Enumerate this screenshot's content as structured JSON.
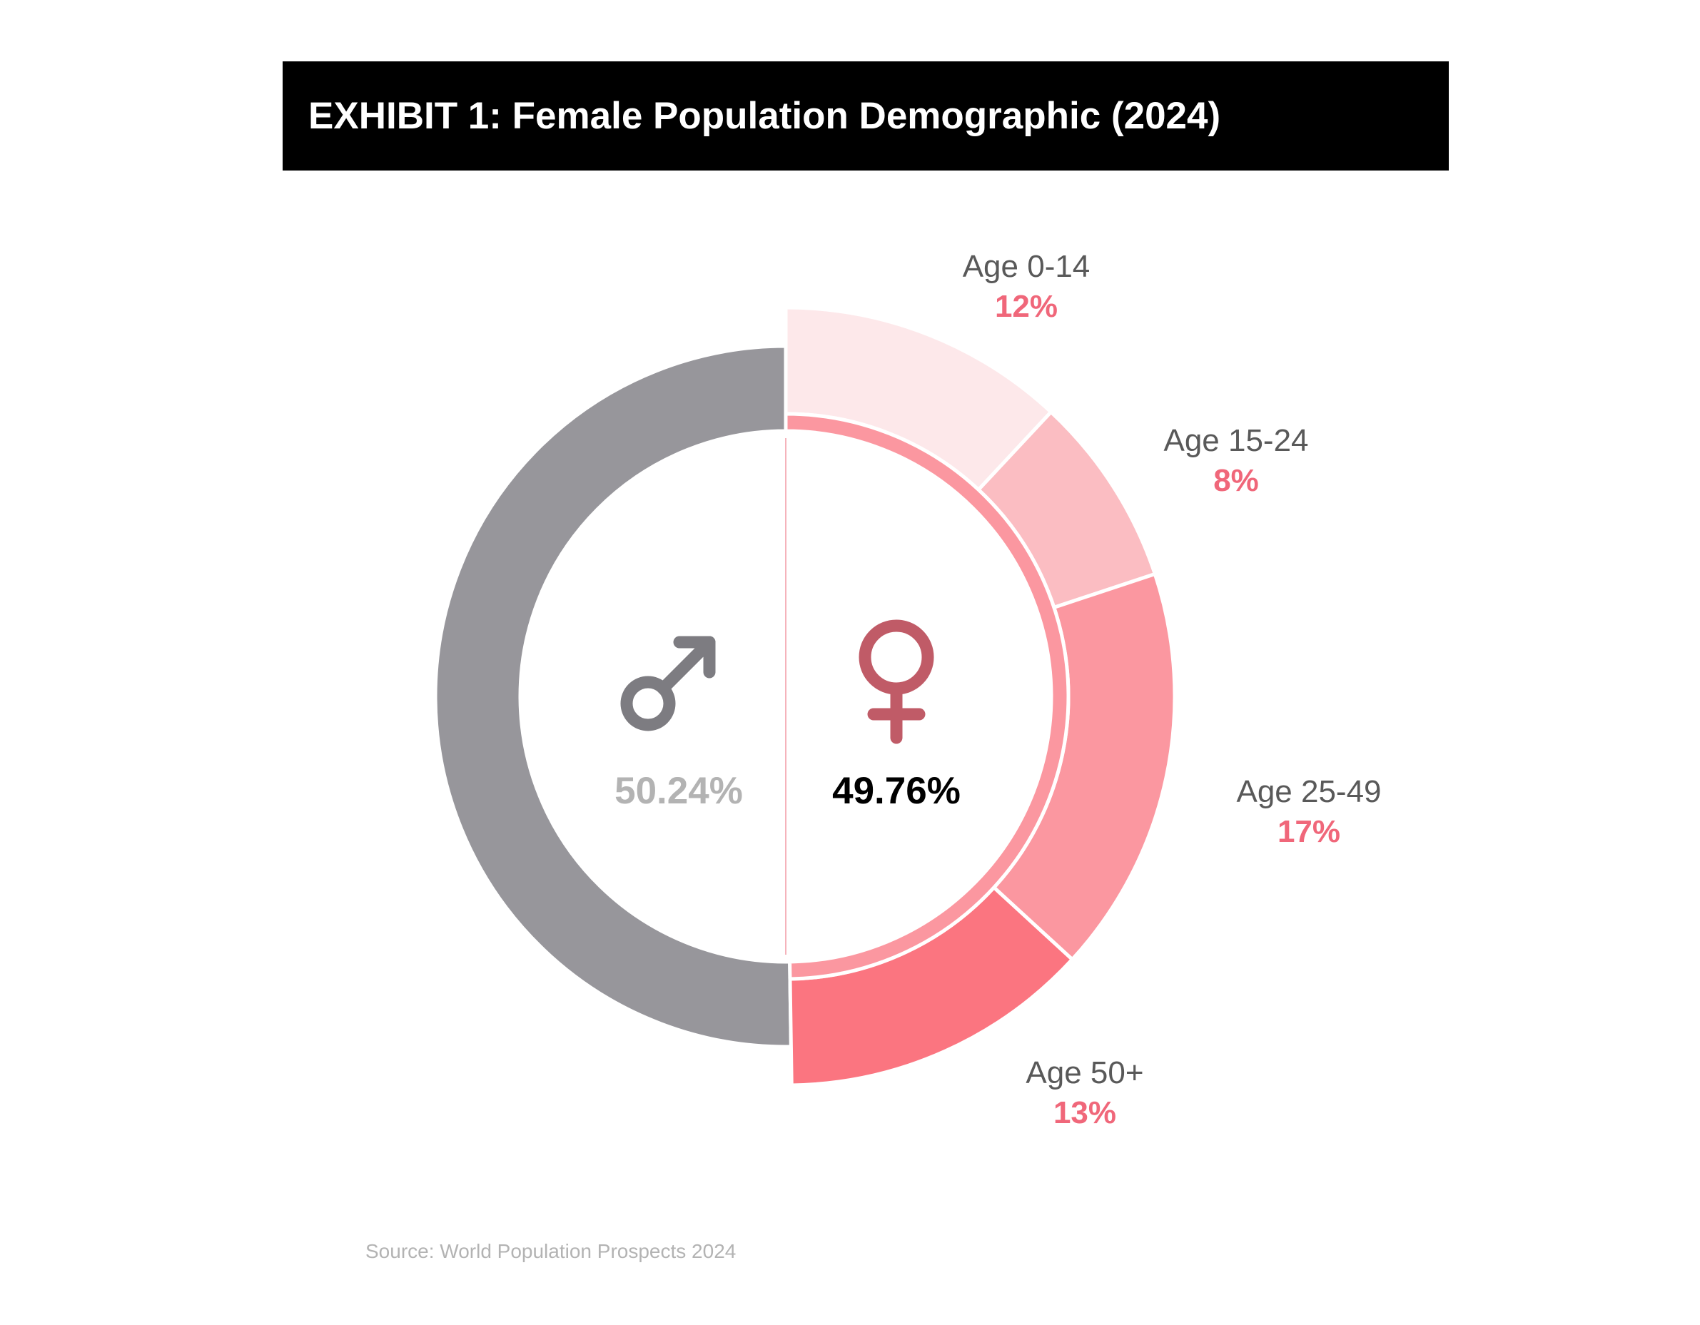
{
  "title": "EXHIBIT 1: Female Population Demographic (2024)",
  "source": "Source: World Population Prospects 2024",
  "chart_data": {
    "type": "pie",
    "subtype": "nested-donut",
    "inner_series": [
      {
        "label": "♂",
        "value": 50.24,
        "value_label": "50.24%",
        "color": "#97969b"
      },
      {
        "label": "♀",
        "value": 49.76,
        "value_label": "49.76%",
        "color": "#fb97a0"
      }
    ],
    "outer_segments": [
      {
        "label": "Age 0-14",
        "value": 12,
        "value_label": "12%",
        "color": "#fde8ea"
      },
      {
        "label": "Age 15-24",
        "value": 8,
        "value_label": "8%",
        "color": "#fbbdc2"
      },
      {
        "label": "Age 25-49",
        "value": 17,
        "value_label": "17%",
        "color": "#fb97a0"
      },
      {
        "label": "Age 50+",
        "value": 13,
        "value_label": "13%",
        "color": "#fb7580"
      }
    ],
    "colors": {
      "male_ring": "#97969b",
      "male_symbol": "#7d7c81",
      "male_text": "#b3b3b3",
      "female_symbol": "#c05b67",
      "female_text": "#000000",
      "segment_value_text": "#f0677a",
      "segment_label_text": "#595959",
      "divider": "#f5b3bb"
    }
  }
}
